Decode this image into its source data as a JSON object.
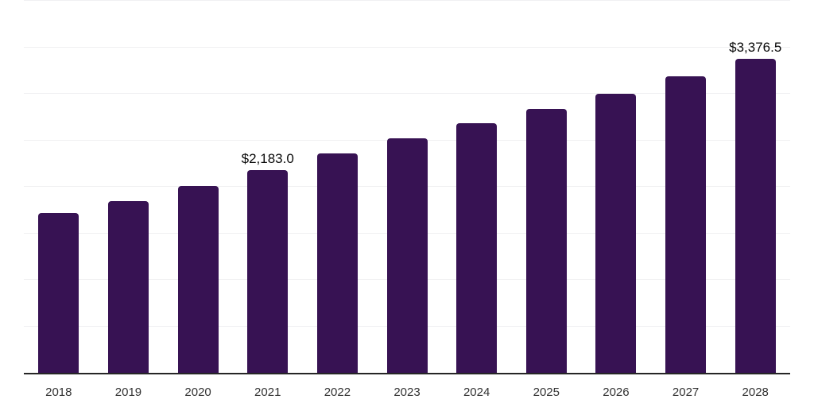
{
  "chart_data": {
    "type": "bar",
    "title": "",
    "xlabel": "",
    "ylabel": "",
    "categories": [
      "2018",
      "2019",
      "2020",
      "2021",
      "2022",
      "2023",
      "2024",
      "2025",
      "2026",
      "2027",
      "2028"
    ],
    "values": [
      1720,
      1850,
      2010,
      2183.0,
      2360,
      2520,
      2680,
      2840,
      3000,
      3190,
      3376.5
    ],
    "value_labels": [
      "",
      "",
      "",
      "$2,183.0",
      "",
      "",
      "",
      "",
      "",
      "",
      "$3,376.5"
    ],
    "ylim": [
      0,
      4000
    ],
    "gridline_step": 500,
    "grid_on": true,
    "legend_position": "none",
    "colors": {
      "bar": "#371253",
      "gridline": "#f0f0f2",
      "axis_line": "#262626",
      "x_tick_label": "#333333",
      "value_label": "#0a0a0a",
      "background": "#ffffff"
    }
  }
}
